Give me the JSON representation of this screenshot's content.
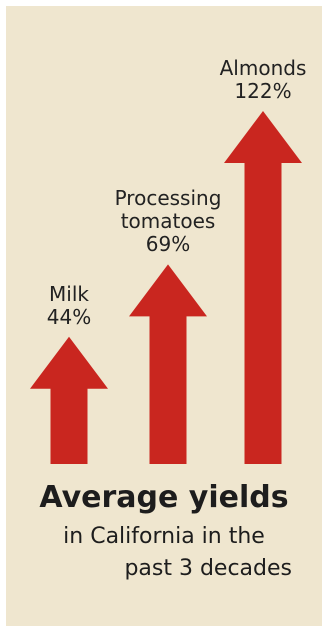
{
  "chart_data": {
    "type": "bar",
    "categories": [
      "Milk",
      "Processing tomatoes",
      "Almonds"
    ],
    "series": [
      {
        "values": [
          44,
          69,
          122
        ]
      }
    ],
    "value_labels": [
      "44%",
      "69%",
      "122%"
    ],
    "bar_color": "#c9261f",
    "title": "Average yields",
    "subtitle_line1": "in California in the",
    "subtitle_line2": "past 3 decades"
  },
  "category_label_lines": [
    [
      "Milk"
    ],
    [
      "Processing",
      "tomatoes"
    ],
    [
      "Almonds"
    ]
  ]
}
